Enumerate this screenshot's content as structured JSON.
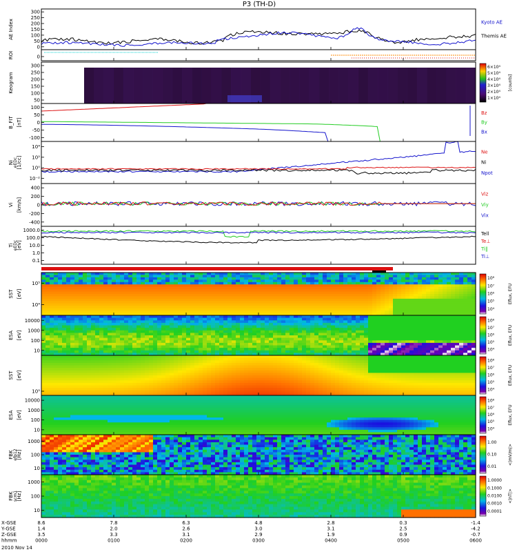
{
  "title": "P3 (TH-D)",
  "colors": {
    "red": "#dd1111",
    "green": "#22cc22",
    "blue": "#1111cc",
    "black": "#000000",
    "orange": "#ff8800",
    "cyan": "#00cccc"
  },
  "chart_data": [
    {
      "type": "line",
      "ylabel": "AE Index",
      "yticks": [
        "0",
        "50",
        "100",
        "150",
        "200",
        "250",
        "300"
      ],
      "legend": [
        {
          "text": "Kyoto AE",
          "color": "blue"
        },
        {
          "text": "Themis AE",
          "color": "black"
        }
      ]
    },
    {
      "type": "line",
      "ylabel": "ROI",
      "yticks": [
        "0"
      ],
      "legend": []
    },
    {
      "type": "heatmap",
      "ylabel": "Keogram",
      "yticks": [
        "50",
        "100",
        "150",
        "200",
        "250",
        "300"
      ],
      "legend": [],
      "colorbar": {
        "ticks": [
          "1×10⁴",
          "2×10⁴",
          "3×10⁴",
          "4×10⁴",
          "5×10⁴",
          "6×10⁴"
        ],
        "label": "[counts]"
      }
    },
    {
      "type": "line",
      "ylabel": "B_FIT",
      "yunit": "[nT]",
      "yticks": [
        "-100",
        "-50",
        "0",
        "50",
        "100"
      ],
      "legend": [
        {
          "text": "Bz",
          "color": "red"
        },
        {
          "text": "By",
          "color": "green"
        },
        {
          "text": "Bx",
          "color": "blue"
        }
      ]
    },
    {
      "type": "line",
      "ylabel": "Ni",
      "yunit": "[1/cc]",
      "ysub": "eEDc",
      "yticks": [
        "10⁻²",
        "10⁰",
        "10²",
        "10⁴"
      ],
      "legend": [
        {
          "text": "Ne",
          "color": "red"
        },
        {
          "text": "Ni",
          "color": "black"
        },
        {
          "text": "Npot",
          "color": "blue"
        }
      ]
    },
    {
      "type": "line",
      "ylabel": "Vi",
      "yunit": "[km/s]",
      "yticks": [
        "-400",
        "-200",
        "0",
        "200",
        "400"
      ],
      "legend": [
        {
          "text": "Viz",
          "color": "red"
        },
        {
          "text": "Viy",
          "color": "green"
        },
        {
          "text": "Vix",
          "color": "blue"
        }
      ]
    },
    {
      "type": "line",
      "ylabel": "Ti",
      "yunit": "[eV]",
      "ysub": "eEDc",
      "yticks": [
        "0.1",
        "1.0",
        "10.0",
        "100.0",
        "1000.0"
      ],
      "legend": [
        {
          "text": "Tell",
          "color": "black"
        },
        {
          "text": "Te⊥",
          "color": "red"
        },
        {
          "text": "Ti‖",
          "color": "green"
        },
        {
          "text": "Ti⊥",
          "color": "blue"
        }
      ]
    },
    {
      "type": "heatmap",
      "ylabel": "SST",
      "yunit": "[eV]",
      "yticks": [
        "10⁴",
        "10⁵"
      ],
      "colorbar": {
        "ticks": [
          "10⁴",
          "10⁵",
          "10⁶",
          "10⁷",
          "10⁸"
        ],
        "label": "Eflux, EFU"
      }
    },
    {
      "type": "heatmap",
      "ylabel": "ESA",
      "yunit": "[eV]",
      "yticks": [
        "10",
        "100",
        "1000",
        "10000"
      ],
      "colorbar": {
        "ticks": [
          "10⁴",
          "10⁵",
          "10⁶",
          "10⁷",
          "10⁸"
        ],
        "label": "Eflux, EFU"
      }
    },
    {
      "type": "heatmap",
      "ylabel": "SST",
      "yunit": "[eV]",
      "yticks": [
        "10⁵"
      ],
      "colorbar": {
        "ticks": [
          "10⁴",
          "10⁵",
          "10⁶",
          "10⁷",
          "10⁸"
        ],
        "label": "Eflux, EFU"
      }
    },
    {
      "type": "heatmap",
      "ylabel": "ESA",
      "yunit": "[eV]",
      "yticks": [
        "10",
        "100",
        "1000",
        "10000"
      ],
      "colorbar": {
        "ticks": [
          "10⁴",
          "10⁵",
          "10⁶",
          "10⁷",
          "10⁸"
        ],
        "label": "Eflux, EFU"
      }
    },
    {
      "type": "heatmap",
      "ylabel": "FBK",
      "yunit": "[Hz]",
      "ysub": "efp12",
      "yticks": [
        "10",
        "100",
        "1000"
      ],
      "colorbar": {
        "ticks": [
          "0.01",
          "0.10",
          "1.00"
        ],
        "label": "<|mV/m|>"
      }
    },
    {
      "type": "heatmap",
      "ylabel": "FBK",
      "yunit": "[Hz]",
      "ysub": "scm1",
      "yticks": [
        "10",
        "100",
        "1000"
      ],
      "colorbar": {
        "ticks": [
          "0.0001",
          "0.0010",
          "0.0100",
          "0.1000",
          "1.0000"
        ],
        "label": "<|nT|>"
      }
    }
  ],
  "xaxis": {
    "rows": [
      {
        "label": "X-GSE",
        "values": [
          "8.6",
          "7.8",
          "6.3",
          "4.8",
          "2.8",
          "0.3",
          "-1.4"
        ]
      },
      {
        "label": "Y-GSE",
        "values": [
          "1.4",
          "2.0",
          "2.6",
          "3.0",
          "3.1",
          "2.5",
          "-4.2"
        ]
      },
      {
        "label": "Z-GSE",
        "values": [
          "3.5",
          "3.3",
          "3.1",
          "2.9",
          "1.9",
          "0.9",
          "-0.7"
        ]
      },
      {
        "label": "hhmm",
        "values": [
          "0000",
          "0100",
          "0200",
          "0300",
          "0400",
          "0500",
          "0600"
        ]
      }
    ],
    "date": "2010 Nov 14"
  }
}
